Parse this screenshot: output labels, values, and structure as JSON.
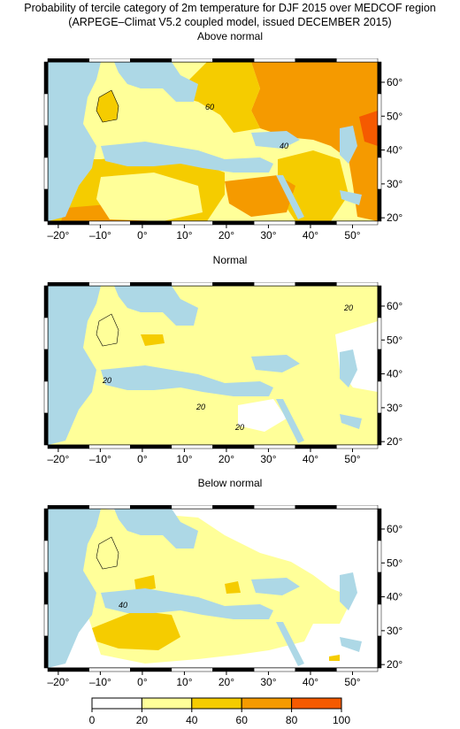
{
  "titles": {
    "line1": "Probability of tercile category of 2m temperature for DJF 2015 over MEDCOF region",
    "line2": "(ARPEGE–Climat V5.2 coupled model, issued DECEMBER  2015)"
  },
  "panels": [
    {
      "title": "Above normal",
      "contour_labels": [
        "60",
        "40"
      ]
    },
    {
      "title": "Normal",
      "contour_labels": [
        "20",
        "20",
        "20",
        "20"
      ]
    },
    {
      "title": "Below normal",
      "contour_labels": [
        "40"
      ]
    }
  ],
  "axes": {
    "lon_ticks": [
      "–20°",
      "–10°",
      "0°",
      "10°",
      "20°",
      "30°",
      "40°",
      "50°"
    ],
    "lat_ticks": [
      "60°",
      "50°",
      "40°",
      "30°",
      "20°"
    ]
  },
  "colorbar": {
    "ticks": [
      "0",
      "20",
      "40",
      "60",
      "80",
      "100"
    ],
    "colors": [
      "#ffffff",
      "#ffff99",
      "#f5cc00",
      "#f59a00",
      "#f55a00"
    ]
  },
  "colors": {
    "sea": "#add8e6",
    "cat20_40": "#ffff99",
    "cat40_60": "#f5cc00",
    "cat60_80": "#f59a00",
    "cat80_100": "#f55a00",
    "cat0_20": "#ffffff"
  }
}
